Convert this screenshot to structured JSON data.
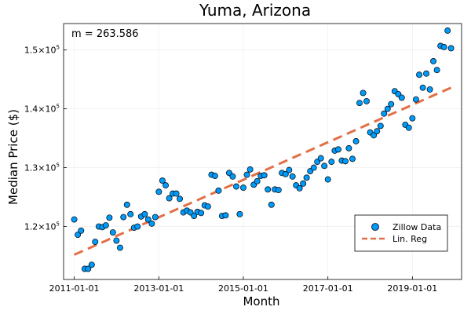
{
  "chart_data": {
    "type": "scatter",
    "title": "Yuma, Arizona",
    "xlabel": "Month",
    "ylabel": "Median Price ($)",
    "annotation": "m = 263.586",
    "grid": true,
    "legend_position": "bottom-right",
    "x_ticks": [
      "2011-01-01",
      "2013-01-01",
      "2015-01-01",
      "2017-01-01",
      "2019-01-01"
    ],
    "y_ticks": [
      120000,
      130000,
      140000,
      150000
    ],
    "y_tick_labels": [
      {
        "mantissa": "1.2×10",
        "exp": "5"
      },
      {
        "mantissa": "1.3×10",
        "exp": "5"
      },
      {
        "mantissa": "1.4×10",
        "exp": "5"
      },
      {
        "mantissa": "1.5×10",
        "exp": "5"
      }
    ],
    "xlim": [
      "2010-10-01",
      "2020-03-01"
    ],
    "ylim": [
      111000,
      154500
    ],
    "series": [
      {
        "name": "Zillow Data",
        "kind": "scatter",
        "color": "#009af9",
        "points": [
          {
            "x": "2011-01",
            "y": 121200
          },
          {
            "x": "2011-02",
            "y": 118600
          },
          {
            "x": "2011-03",
            "y": 119300
          },
          {
            "x": "2011-04",
            "y": 112800
          },
          {
            "x": "2011-05",
            "y": 112800
          },
          {
            "x": "2011-06",
            "y": 113500
          },
          {
            "x": "2011-07",
            "y": 117400
          },
          {
            "x": "2011-08",
            "y": 120000
          },
          {
            "x": "2011-09",
            "y": 119900
          },
          {
            "x": "2011-10",
            "y": 120200
          },
          {
            "x": "2011-11",
            "y": 121500
          },
          {
            "x": "2011-12",
            "y": 119000
          },
          {
            "x": "2012-01",
            "y": 117600
          },
          {
            "x": "2012-02",
            "y": 116400
          },
          {
            "x": "2012-03",
            "y": 121600
          },
          {
            "x": "2012-04",
            "y": 123700
          },
          {
            "x": "2012-05",
            "y": 122100
          },
          {
            "x": "2012-06",
            "y": 119800
          },
          {
            "x": "2012-07",
            "y": 120000
          },
          {
            "x": "2012-08",
            "y": 121700
          },
          {
            "x": "2012-09",
            "y": 122100
          },
          {
            "x": "2012-10",
            "y": 121200
          },
          {
            "x": "2012-11",
            "y": 120500
          },
          {
            "x": "2012-12",
            "y": 121600
          },
          {
            "x": "2013-01",
            "y": 125900
          },
          {
            "x": "2013-02",
            "y": 127800
          },
          {
            "x": "2013-03",
            "y": 127000
          },
          {
            "x": "2013-04",
            "y": 124800
          },
          {
            "x": "2013-05",
            "y": 125600
          },
          {
            "x": "2013-06",
            "y": 125600
          },
          {
            "x": "2013-07",
            "y": 124700
          },
          {
            "x": "2013-08",
            "y": 122400
          },
          {
            "x": "2013-09",
            "y": 122700
          },
          {
            "x": "2013-10",
            "y": 122400
          },
          {
            "x": "2013-11",
            "y": 121800
          },
          {
            "x": "2013-12",
            "y": 122500
          },
          {
            "x": "2014-01",
            "y": 122300
          },
          {
            "x": "2014-02",
            "y": 123600
          },
          {
            "x": "2014-03",
            "y": 123400
          },
          {
            "x": "2014-04",
            "y": 128800
          },
          {
            "x": "2014-05",
            "y": 128600
          },
          {
            "x": "2014-06",
            "y": 126100
          },
          {
            "x": "2014-07",
            "y": 121800
          },
          {
            "x": "2014-08",
            "y": 121900
          },
          {
            "x": "2014-09",
            "y": 129100
          },
          {
            "x": "2014-10",
            "y": 128500
          },
          {
            "x": "2014-11",
            "y": 126800
          },
          {
            "x": "2014-12",
            "y": 122100
          },
          {
            "x": "2015-01",
            "y": 126600
          },
          {
            "x": "2015-02",
            "y": 128800
          },
          {
            "x": "2015-03",
            "y": 129700
          },
          {
            "x": "2015-04",
            "y": 127100
          },
          {
            "x": "2015-05",
            "y": 127700
          },
          {
            "x": "2015-06",
            "y": 128600
          },
          {
            "x": "2015-07",
            "y": 128700
          },
          {
            "x": "2015-08",
            "y": 126300
          },
          {
            "x": "2015-09",
            "y": 123700
          },
          {
            "x": "2015-10",
            "y": 126300
          },
          {
            "x": "2015-11",
            "y": 126200
          },
          {
            "x": "2015-12",
            "y": 129100
          },
          {
            "x": "2016-01",
            "y": 128900
          },
          {
            "x": "2016-02",
            "y": 129600
          },
          {
            "x": "2016-03",
            "y": 128500
          },
          {
            "x": "2016-04",
            "y": 127000
          },
          {
            "x": "2016-05",
            "y": 126500
          },
          {
            "x": "2016-06",
            "y": 127300
          },
          {
            "x": "2016-07",
            "y": 128300
          },
          {
            "x": "2016-08",
            "y": 129400
          },
          {
            "x": "2016-09",
            "y": 130000
          },
          {
            "x": "2016-10",
            "y": 131000
          },
          {
            "x": "2016-11",
            "y": 131600
          },
          {
            "x": "2016-12",
            "y": 130300
          },
          {
            "x": "2017-01",
            "y": 128000
          },
          {
            "x": "2017-02",
            "y": 131000
          },
          {
            "x": "2017-03",
            "y": 132900
          },
          {
            "x": "2017-04",
            "y": 133100
          },
          {
            "x": "2017-05",
            "y": 131200
          },
          {
            "x": "2017-06",
            "y": 131100
          },
          {
            "x": "2017-07",
            "y": 133300
          },
          {
            "x": "2017-08",
            "y": 131500
          },
          {
            "x": "2017-09",
            "y": 134500
          },
          {
            "x": "2017-10",
            "y": 141000
          },
          {
            "x": "2017-11",
            "y": 142700
          },
          {
            "x": "2017-12",
            "y": 141300
          },
          {
            "x": "2018-01",
            "y": 136000
          },
          {
            "x": "2018-02",
            "y": 135500
          },
          {
            "x": "2018-03",
            "y": 136200
          },
          {
            "x": "2018-04",
            "y": 137100
          },
          {
            "x": "2018-05",
            "y": 139200
          },
          {
            "x": "2018-06",
            "y": 140000
          },
          {
            "x": "2018-07",
            "y": 140800
          },
          {
            "x": "2018-08",
            "y": 143000
          },
          {
            "x": "2018-09",
            "y": 142500
          },
          {
            "x": "2018-10",
            "y": 141900
          },
          {
            "x": "2018-11",
            "y": 137300
          },
          {
            "x": "2018-12",
            "y": 136800
          },
          {
            "x": "2019-01",
            "y": 138400
          },
          {
            "x": "2019-02",
            "y": 141600
          },
          {
            "x": "2019-03",
            "y": 145800
          },
          {
            "x": "2019-04",
            "y": 143600
          },
          {
            "x": "2019-05",
            "y": 146000
          },
          {
            "x": "2019-06",
            "y": 143300
          },
          {
            "x": "2019-07",
            "y": 148100
          },
          {
            "x": "2019-08",
            "y": 146600
          },
          {
            "x": "2019-09",
            "y": 150700
          },
          {
            "x": "2019-10",
            "y": 150500
          },
          {
            "x": "2019-11",
            "y": 153300
          },
          {
            "x": "2019-12",
            "y": 150300
          }
        ]
      },
      {
        "name": "Lin. Reg",
        "kind": "line",
        "style": "dashed",
        "color": "#e26f46",
        "points": [
          {
            "x": "2011-01",
            "y": 115200
          },
          {
            "x": "2019-12",
            "y": 143600
          }
        ]
      }
    ]
  }
}
